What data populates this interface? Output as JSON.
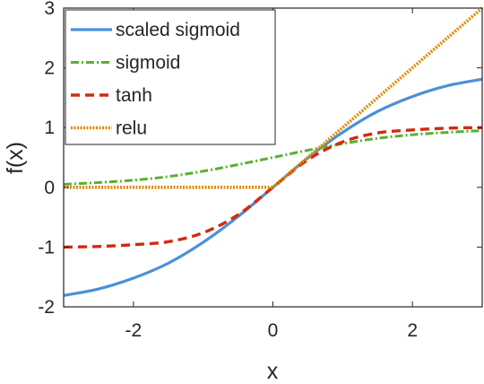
{
  "chart_data": {
    "type": "line",
    "xlabel": "x",
    "ylabel": "f(x)",
    "xlim": [
      -3,
      3
    ],
    "ylim": [
      -2,
      3
    ],
    "xticks": [
      -2,
      0,
      2
    ],
    "yticks": [
      -2,
      -1,
      0,
      1,
      2,
      3
    ],
    "xtick_labels": [
      "-2",
      "0",
      "2"
    ],
    "ytick_labels": [
      "-2",
      "-1",
      "0",
      "1",
      "2",
      "3"
    ],
    "grid": false,
    "legend_position": "top-left",
    "x": [
      -3,
      -2.5,
      -2,
      -1.5,
      -1,
      -0.5,
      0,
      0.5,
      1,
      1.5,
      2,
      2.5,
      3
    ],
    "series": [
      {
        "name": "scaled sigmoid",
        "color": "#4a90d9",
        "style": "solid",
        "values": [
          -1.81,
          -1.7,
          -1.52,
          -1.27,
          -0.92,
          -0.49,
          0.0,
          0.49,
          0.92,
          1.27,
          1.52,
          1.7,
          1.81
        ]
      },
      {
        "name": "sigmoid",
        "color": "#5ab030",
        "style": "dashdot",
        "values": [
          0.05,
          0.08,
          0.12,
          0.18,
          0.27,
          0.38,
          0.5,
          0.62,
          0.73,
          0.82,
          0.88,
          0.92,
          0.95
        ]
      },
      {
        "name": "tanh",
        "color": "#d42a0e",
        "style": "dashed",
        "values": [
          -1.0,
          -0.99,
          -0.96,
          -0.91,
          -0.76,
          -0.46,
          0.0,
          0.46,
          0.76,
          0.91,
          0.96,
          0.99,
          1.0
        ]
      },
      {
        "name": "relu",
        "color": "#e08a00",
        "style": "dotted",
        "values": [
          0,
          0,
          0,
          0,
          0,
          0,
          0,
          0.5,
          1.0,
          1.5,
          2.0,
          2.5,
          3.0
        ]
      }
    ]
  }
}
